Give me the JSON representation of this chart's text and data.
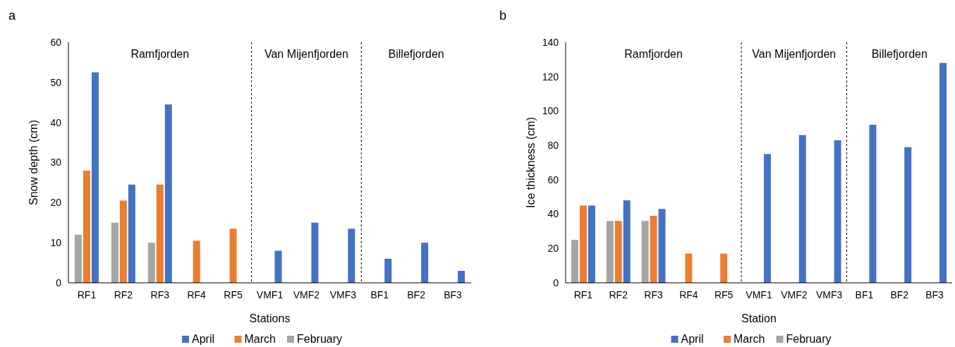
{
  "chart_data": [
    {
      "type": "bar",
      "title": "a",
      "xlabel": "Stations",
      "ylabel": "Snow depth (cm)",
      "categories": [
        "RF1",
        "RF2",
        "RF3",
        "RF4",
        "RF5",
        "VMF1",
        "VMF2",
        "VMF3",
        "BF1",
        "BF2",
        "BF3"
      ],
      "series": [
        {
          "name": "February",
          "color": "#a5a5a5",
          "values": [
            12,
            15,
            10,
            null,
            null,
            null,
            null,
            null,
            null,
            null,
            null
          ]
        },
        {
          "name": "March",
          "color": "#ed7d31",
          "values": [
            28,
            20.5,
            24.5,
            10.5,
            13.5,
            null,
            null,
            null,
            null,
            null,
            null
          ]
        },
        {
          "name": "April",
          "color": "#4472c4",
          "values": [
            52.5,
            24.5,
            44.5,
            null,
            null,
            8,
            15,
            13.5,
            6,
            10,
            3
          ]
        }
      ],
      "ylim": [
        0,
        60
      ],
      "yticks": [
        0,
        10,
        20,
        30,
        40,
        50,
        60
      ],
      "grid": false,
      "legend": "bottom",
      "annotations": [
        "Ramfjorden",
        "Van Mijenfjorden",
        "Billefjorden"
      ]
    },
    {
      "type": "bar",
      "title": "b",
      "xlabel": "Station",
      "ylabel": "Ice thickness (cm)",
      "categories": [
        "RF1",
        "RF2",
        "RF3",
        "RF4",
        "RF5",
        "VMF1",
        "VMF2",
        "VMF3",
        "BF1",
        "BF2",
        "BF3"
      ],
      "series": [
        {
          "name": "February",
          "color": "#a5a5a5",
          "values": [
            25,
            36,
            36,
            null,
            null,
            null,
            null,
            null,
            null,
            null,
            null
          ]
        },
        {
          "name": "March",
          "color": "#ed7d31",
          "values": [
            45,
            36,
            39,
            17,
            17,
            null,
            null,
            null,
            null,
            null,
            null
          ]
        },
        {
          "name": "April",
          "color": "#4472c4",
          "values": [
            45,
            48,
            43,
            null,
            null,
            75,
            86,
            83,
            92,
            79,
            128
          ]
        }
      ],
      "ylim": [
        0,
        140
      ],
      "yticks": [
        0,
        20,
        40,
        60,
        80,
        100,
        120,
        140
      ],
      "grid": false,
      "legend": "bottom",
      "annotations": [
        "Ramfjorden",
        "Van Mijenfjorden",
        "Billefjorden"
      ]
    }
  ]
}
